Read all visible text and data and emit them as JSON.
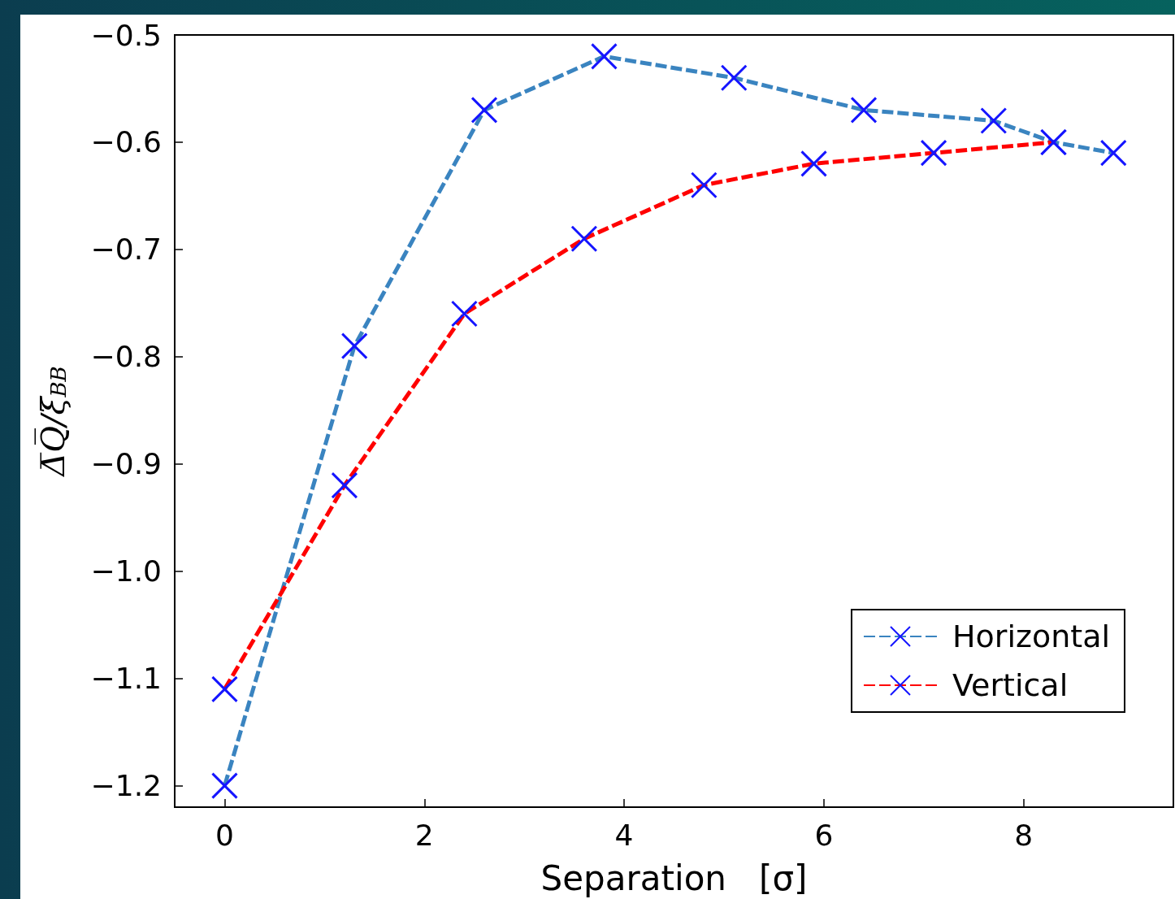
{
  "chart_data": {
    "type": "line",
    "xlabel": "Separation   [σ]",
    "ylabel": "Δ̅Q̅/ξ$_{BB}$",
    "series": [
      {
        "name": "Horizontal",
        "color": "#3a84c0",
        "x": [
          0,
          1.3,
          2.6,
          3.8,
          5.1,
          6.4,
          7.7,
          8.3,
          8.9
        ],
        "values": [
          -1.2,
          -0.79,
          -0.57,
          -0.52,
          -0.54,
          -0.57,
          -0.58,
          -0.6,
          -0.61
        ]
      },
      {
        "name": "Vertical",
        "color": "#ff0000",
        "x": [
          0,
          1.2,
          2.4,
          3.6,
          4.8,
          5.9,
          7.1,
          8.3
        ],
        "values": [
          -1.11,
          -0.92,
          -0.76,
          -0.69,
          -0.64,
          -0.62,
          -0.61,
          -0.6
        ]
      }
    ],
    "xlim": [
      -0.5,
      9.5
    ],
    "xticks": [
      0,
      2,
      4,
      6,
      8
    ],
    "ylim": [
      -1.22,
      -0.5
    ],
    "yticks": [
      {
        "value": -1.2,
        "label": "−1.2"
      },
      {
        "value": -1.1,
        "label": "−1.1"
      },
      {
        "value": -1.0,
        "label": "−1.0"
      },
      {
        "value": -0.9,
        "label": "−0.9"
      },
      {
        "value": -0.8,
        "label": "−0.8"
      },
      {
        "value": -0.7,
        "label": "−0.7"
      },
      {
        "value": -0.6,
        "label": "−0.6"
      },
      {
        "value": -0.5,
        "label": "−0.5"
      }
    ],
    "marker": "cross",
    "line_style": "dashed",
    "legend": "bottom right",
    "grid": false
  }
}
